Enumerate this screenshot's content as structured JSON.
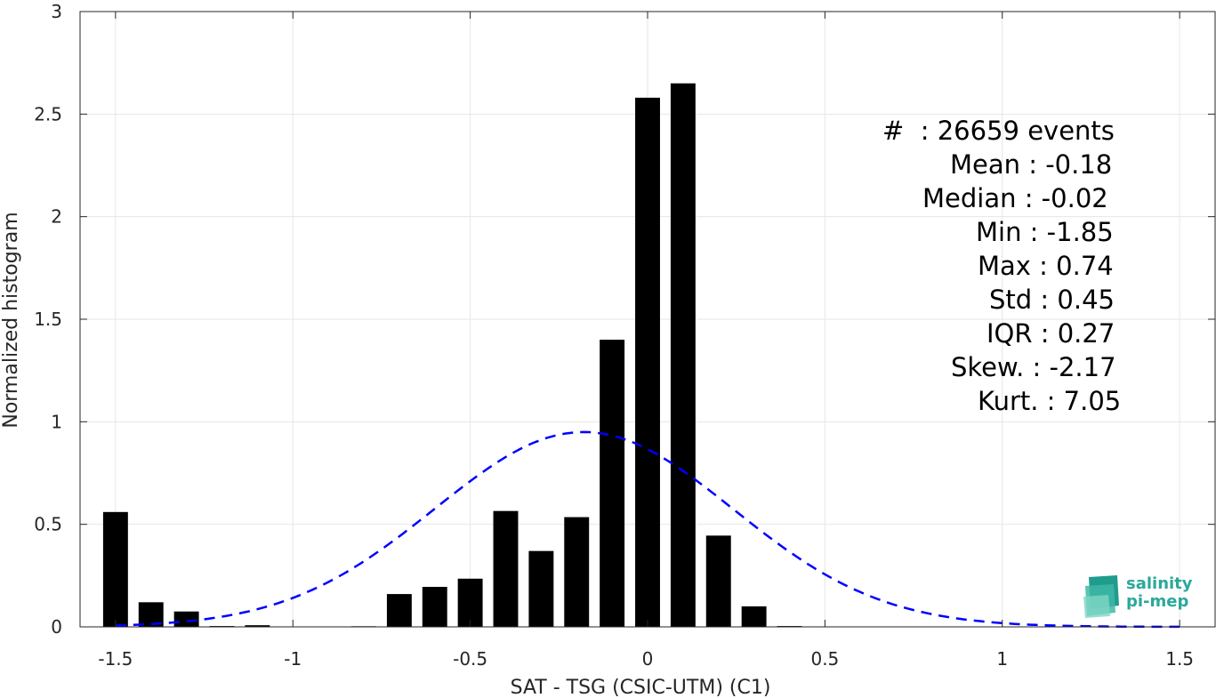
{
  "chart_data": {
    "type": "bar",
    "xlabel": "SAT - TSG (CSIC-UTM) (C1)",
    "ylabel": "Normalized histogram",
    "xlim": [
      -1.6,
      1.6
    ],
    "ylim": [
      0,
      3
    ],
    "xticks": [
      -1.5,
      -1,
      -0.5,
      0,
      0.5,
      1,
      1.5
    ],
    "xtick_labels": [
      "-1.5",
      "-1",
      "-0.5",
      "0",
      "0.5",
      "1",
      "1.5"
    ],
    "yticks": [
      0,
      0.5,
      1,
      1.5,
      2,
      2.5,
      3
    ],
    "ytick_labels": [
      "0",
      "0.5",
      "1",
      "1.5",
      "2",
      "2.5",
      "3"
    ],
    "grid": true,
    "bin_width": 0.1,
    "bar_width": 0.07,
    "x": [
      -1.5,
      -1.4,
      -1.3,
      -1.2,
      -1.1,
      -1.0,
      -0.9,
      -0.8,
      -0.7,
      -0.6,
      -0.5,
      -0.4,
      -0.3,
      -0.2,
      -0.1,
      0.0,
      0.1,
      0.2,
      0.3,
      0.4,
      0.5,
      0.6,
      0.7,
      0.8,
      0.9,
      1.0,
      1.1,
      1.2,
      1.3,
      1.4,
      1.5
    ],
    "values": [
      0.56,
      0.12,
      0.075,
      0.004,
      0.008,
      0.0,
      0.0,
      0.003,
      0.16,
      0.195,
      0.235,
      0.565,
      0.37,
      0.535,
      1.4,
      2.58,
      2.65,
      0.445,
      0.1,
      0.004,
      0.0,
      0.0,
      0.002,
      0.0,
      0.0,
      0.0,
      0.0,
      0.0,
      0.0,
      0.0,
      0.0
    ],
    "fit": {
      "type": "gaussian",
      "mean": -0.18,
      "std": 0.42,
      "color": "#0000ff",
      "style": "dashed",
      "x_range": [
        -1.5,
        1.5
      ]
    },
    "bar_color": "#000000",
    "stats": [
      {
        "label": "#  : 26659 events"
      },
      {
        "label": "Mean : -0.18"
      },
      {
        "label": "Median : -0.02"
      },
      {
        "label": "Min : -1.85"
      },
      {
        "label": "Max : 0.74"
      },
      {
        "label": "Std : 0.45"
      },
      {
        "label": "IQR : 0.27"
      },
      {
        "label": "Skew. : -2.17"
      },
      {
        "label": "Kurt. : 7.05"
      }
    ]
  },
  "logo": {
    "line1": "salinity",
    "line2": "pi-mep",
    "color": "#2aa89a"
  }
}
